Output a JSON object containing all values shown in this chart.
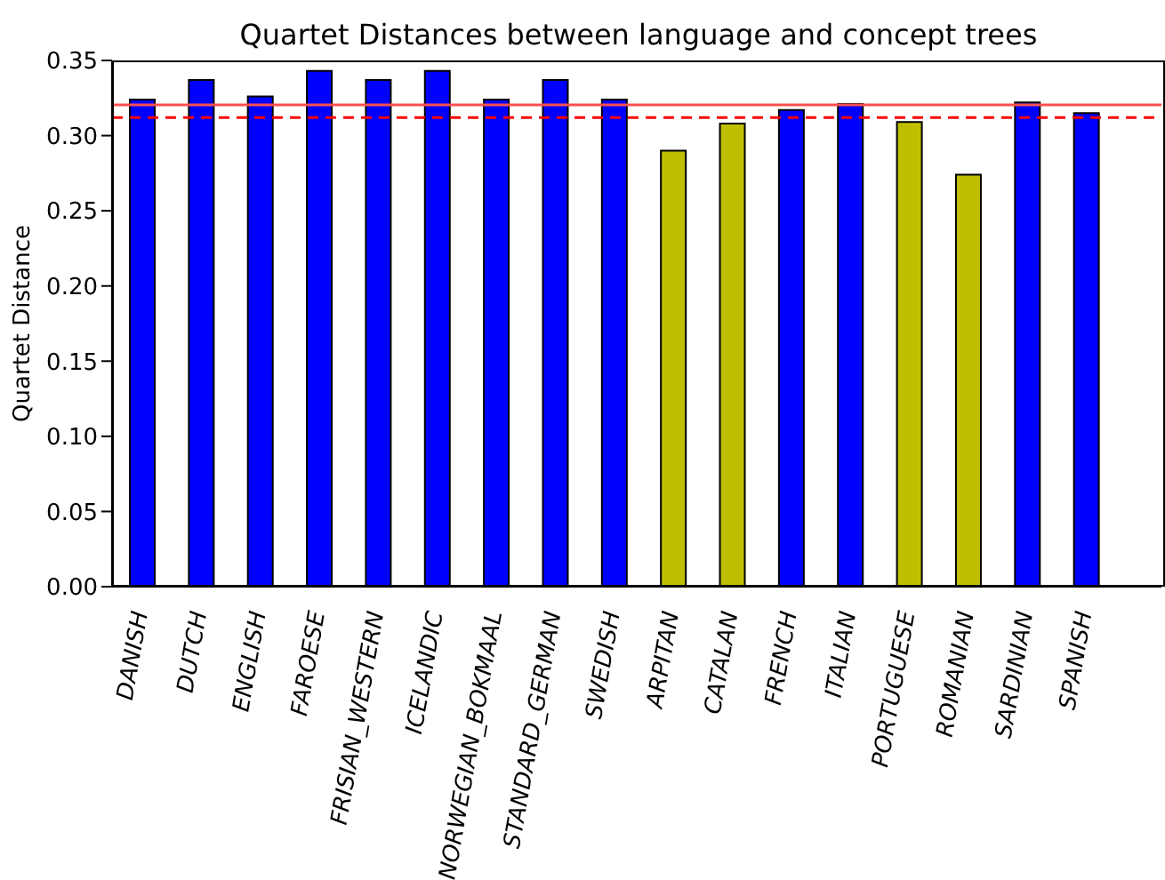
{
  "chart_data": {
    "type": "bar",
    "title": "Quartet Distances between language and concept trees",
    "ylabel": "Quartet Distance",
    "categories": [
      "DANISH",
      "DUTCH",
      "ENGLISH",
      "FAROESE",
      "FRISIAN_WESTERN",
      "ICELANDIC",
      "NORWEGIAN_BOKMAAL",
      "STANDARD_GERMAN",
      "SWEDISH",
      "ARPITAN",
      "CATALAN",
      "FRENCH",
      "ITALIAN",
      "PORTUGUESE",
      "ROMANIAN",
      "SARDINIAN",
      "SPANISH"
    ],
    "values": [
      0.324,
      0.337,
      0.326,
      0.343,
      0.337,
      0.343,
      0.324,
      0.337,
      0.324,
      0.29,
      0.308,
      0.317,
      0.321,
      0.309,
      0.274,
      0.322,
      0.315
    ],
    "colors": [
      "#0000ff",
      "#0000ff",
      "#0000ff",
      "#0000ff",
      "#0000ff",
      "#0000ff",
      "#0000ff",
      "#0000ff",
      "#0000ff",
      "#bfbf00",
      "#bfbf00",
      "#0000ff",
      "#0000ff",
      "#bfbf00",
      "#bfbf00",
      "#0000ff",
      "#0000ff"
    ],
    "ylim": [
      0,
      0.35
    ],
    "yticks": [
      {
        "value": 0,
        "label": "0.00"
      },
      {
        "value": 0.05,
        "label": "0.05"
      },
      {
        "value": 0.1,
        "label": "0.10"
      },
      {
        "value": 0.15,
        "label": "0.15"
      },
      {
        "value": 0.2,
        "label": "0.20"
      },
      {
        "value": 0.25,
        "label": "0.25"
      },
      {
        "value": 0.3,
        "label": "0.30"
      },
      {
        "value": 0.35,
        "label": "0.35"
      }
    ],
    "ref_lines": [
      {
        "axis": "y",
        "value": 0.3205,
        "color": "#ff5050",
        "line_style": "solid"
      },
      {
        "axis": "y",
        "value": 0.312,
        "color": "#ff0000",
        "line_style": "dashed"
      }
    ],
    "grid": false,
    "legend": false
  }
}
